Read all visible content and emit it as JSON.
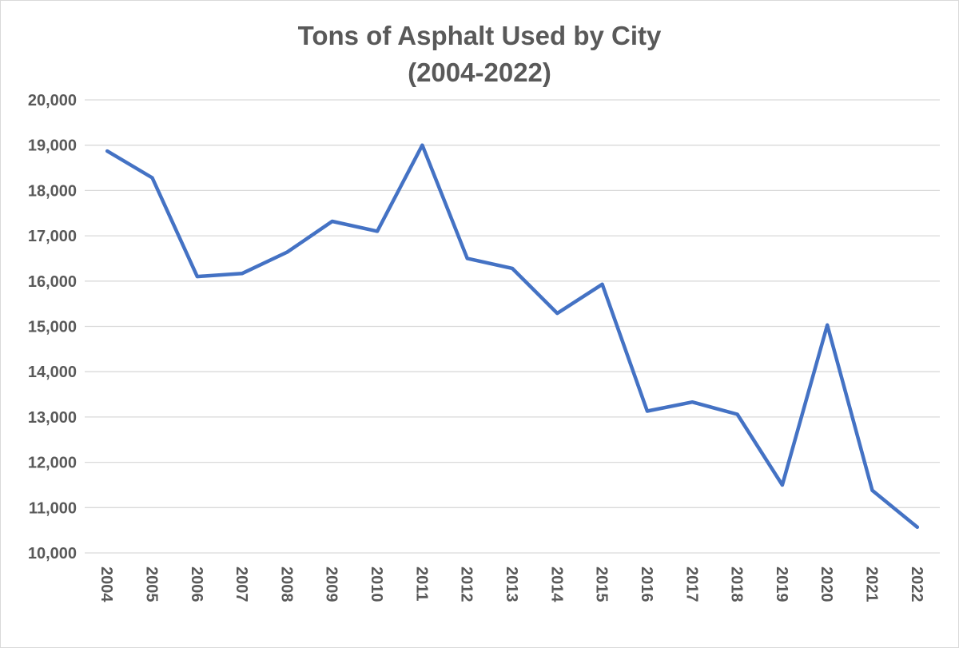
{
  "chart_data": {
    "type": "line",
    "title_lines": [
      "Tons of Asphalt Used by City",
      "(2004-2022)"
    ],
    "xlabel": "",
    "ylabel": "",
    "categories": [
      "2004",
      "2005",
      "2006",
      "2007",
      "2008",
      "2009",
      "2010",
      "2011",
      "2012",
      "2013",
      "2014",
      "2015",
      "2016",
      "2017",
      "2018",
      "2019",
      "2020",
      "2021",
      "2022"
    ],
    "series": [
      {
        "name": "Tons of Asphalt",
        "color": "#4472C4",
        "values": [
          18870,
          18280,
          16100,
          16170,
          16640,
          17320,
          17100,
          19000,
          16500,
          16280,
          15290,
          15930,
          13130,
          13330,
          13060,
          11500,
          15030,
          11380,
          10570
        ]
      }
    ],
    "ylim": [
      10000,
      20000
    ],
    "yticks": [
      10000,
      11000,
      12000,
      13000,
      14000,
      15000,
      16000,
      17000,
      18000,
      19000,
      20000
    ],
    "ytick_labels": [
      "10,000",
      "11,000",
      "12,000",
      "13,000",
      "14,000",
      "15,000",
      "16,000",
      "17,000",
      "18,000",
      "19,000",
      "20,000"
    ],
    "grid": true,
    "legend": "none"
  }
}
